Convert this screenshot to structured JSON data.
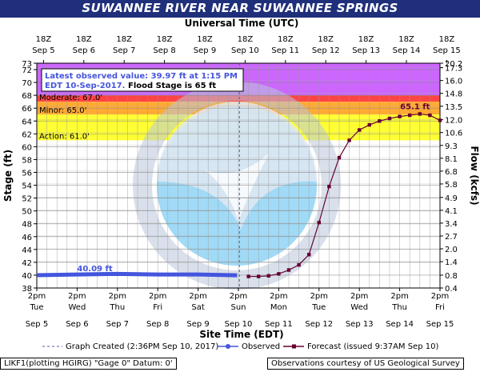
{
  "title": "SUWANNEE RIVER NEAR SUWANNEE SPRINGS",
  "top_axis_title": "Universal Time (UTC)",
  "bottom_axis_title": "Site Time (EDT)",
  "left_axis_title": "Stage (ft)",
  "right_axis_title": "Flow (kcfs)",
  "latest_line1": "Latest observed value: 39.97 ft at 1:15 PM",
  "latest_line2_a": "EDT 10-Sep-2017.",
  "latest_line2_b": "Flood Stage is 65 ft",
  "observed_label": "40.09 ft",
  "forecast_label": "65.1 ft",
  "legend": {
    "created": "Graph Created (2:36PM Sep 10, 2017)",
    "observed": "Observed",
    "forecast": "Forecast (issued 9:37AM Sep 10)"
  },
  "footer_left": "LIKF1(plotting HGIRG) \"Gage 0\" Datum: 0'",
  "footer_right": "Observations courtesy of US Geological Survey",
  "colors": {
    "banner": "#1f2f7a",
    "major": "#cc66ff",
    "moderate": "#ff4444",
    "minor": "#ffaa33",
    "action": "#ffff33",
    "observed": "#4455dd",
    "forecast": "#660033",
    "created_line": "#5a5aa0"
  },
  "chart_data": {
    "type": "line",
    "x_unit": "hours since Sep 5 2pm EDT",
    "xlim": [
      0,
      240
    ],
    "ylim": [
      38,
      73
    ],
    "y_ticks": [
      38,
      40,
      42,
      44,
      46,
      48,
      50,
      52,
      54,
      56,
      58,
      60,
      62,
      64,
      66,
      68,
      70,
      72,
      73
    ],
    "right_ticks": [
      {
        "stage": 38.0,
        "label": "0.4"
      },
      {
        "stage": 40.0,
        "label": "0.8"
      },
      {
        "stage": 42.1,
        "label": "1.4"
      },
      {
        "stage": 44.1,
        "label": "2.0"
      },
      {
        "stage": 46.1,
        "label": "2.7"
      },
      {
        "stage": 48.1,
        "label": "3.4"
      },
      {
        "stage": 50.1,
        "label": "4.1"
      },
      {
        "stage": 52.1,
        "label": "4.9"
      },
      {
        "stage": 54.2,
        "label": "5.8"
      },
      {
        "stage": 56.2,
        "label": "6.8"
      },
      {
        "stage": 58.2,
        "label": "8.1"
      },
      {
        "stage": 60.2,
        "label": "9.3"
      },
      {
        "stage": 62.2,
        "label": "10.6"
      },
      {
        "stage": 64.2,
        "label": "12.0"
      },
      {
        "stage": 66.3,
        "label": "13.5"
      },
      {
        "stage": 68.3,
        "label": "14.8"
      },
      {
        "stage": 70.3,
        "label": "16.0"
      },
      {
        "stage": 72.3,
        "label": "17.3"
      },
      {
        "stage": 73.0,
        "label": "20.2"
      }
    ],
    "bottom_ticks": [
      {
        "t": "2pm",
        "d": "Tue",
        "day": "Sep 5"
      },
      {
        "t": "2pm",
        "d": "Wed",
        "day": "Sep 6"
      },
      {
        "t": "2pm",
        "d": "Thu",
        "day": "Sep 7"
      },
      {
        "t": "2pm",
        "d": "Fri",
        "day": "Sep 8"
      },
      {
        "t": "2pm",
        "d": "Sat",
        "day": "Sep 9"
      },
      {
        "t": "2pm",
        "d": "Sun",
        "day": "Sep 10"
      },
      {
        "t": "2pm",
        "d": "Mon",
        "day": "Sep 11"
      },
      {
        "t": "2pm",
        "d": "Tue",
        "day": "Sep 12"
      },
      {
        "t": "2pm",
        "d": "Wed",
        "day": "Sep 13"
      },
      {
        "t": "2pm",
        "d": "Thu",
        "day": "Sep 14"
      },
      {
        "t": "2pm",
        "d": "Fri",
        "day": "Sep 15"
      }
    ],
    "top_ticks": [
      {
        "t": "18Z",
        "day": "Sep 5"
      },
      {
        "t": "18Z",
        "day": "Sep 6"
      },
      {
        "t": "18Z",
        "day": "Sep 7"
      },
      {
        "t": "18Z",
        "day": "Sep 8"
      },
      {
        "t": "18Z",
        "day": "Sep 9"
      },
      {
        "t": "18Z",
        "day": "Sep 10"
      },
      {
        "t": "18Z",
        "day": "Sep 11"
      },
      {
        "t": "18Z",
        "day": "Sep 12"
      },
      {
        "t": "18Z",
        "day": "Sep 13"
      },
      {
        "t": "18Z",
        "day": "Sep 14"
      },
      {
        "t": "18Z",
        "day": "Sep 15"
      }
    ],
    "bands": [
      {
        "name": "Major",
        "from": 68,
        "to": 73,
        "label": ""
      },
      {
        "name": "Moderate",
        "from": 67,
        "to": 68,
        "label": "Moderate:  67.0'"
      },
      {
        "name": "Minor",
        "from": 65,
        "to": 67,
        "label": "Minor:  65.0'"
      },
      {
        "name": "Action",
        "from": 61,
        "to": 65,
        "label": "Action:  61.0'"
      }
    ],
    "graph_created_hour": 120.6,
    "series": [
      {
        "name": "Observed",
        "x": [
          0,
          24,
          48,
          72,
          96,
          119.2
        ],
        "y": [
          40.0,
          40.1,
          40.2,
          40.1,
          40.1,
          39.97
        ]
      },
      {
        "name": "Forecast",
        "x": [
          126,
          132,
          138,
          144,
          150,
          156,
          162,
          168,
          174,
          180,
          186,
          192,
          198,
          204,
          210,
          216,
          222,
          228,
          234
        ],
        "y": [
          39.8,
          39.8,
          39.9,
          40.2,
          40.8,
          41.6,
          43.2,
          48.2,
          53.8,
          58.3,
          61.0,
          62.6,
          63.4,
          64.0,
          64.4,
          64.7,
          64.9,
          65.1,
          64.9
        ]
      }
    ],
    "forecast_last": {
      "x": 240,
      "y": 64.1
    }
  }
}
